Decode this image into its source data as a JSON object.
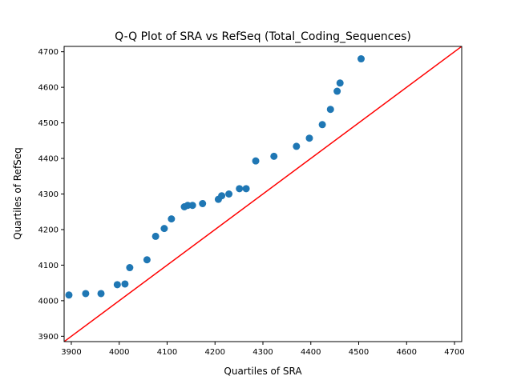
{
  "chart_data": {
    "type": "scatter",
    "title": "Q-Q Plot of SRA vs RefSeq (Total_Coding_Sequences)",
    "xlabel": "Quartiles of SRA",
    "ylabel": "Quartiles of RefSeq",
    "xlim": [
      3885,
      4715
    ],
    "ylim": [
      3885,
      4715
    ],
    "xticks": [
      3900,
      4000,
      4100,
      4200,
      4300,
      4400,
      4500,
      4600,
      4700
    ],
    "yticks": [
      3900,
      4000,
      4100,
      4200,
      4300,
      4400,
      4500,
      4600,
      4700
    ],
    "grid": false,
    "series": [
      {
        "color": "#1f77b4",
        "points": [
          [
            3895,
            4016
          ],
          [
            3930,
            4020
          ],
          [
            3962,
            4020
          ],
          [
            3996,
            4045
          ],
          [
            4012,
            4047
          ],
          [
            4022,
            4093
          ],
          [
            4058,
            4115
          ],
          [
            4076,
            4181
          ],
          [
            4094,
            4203
          ],
          [
            4109,
            4230
          ],
          [
            4136,
            4264
          ],
          [
            4143,
            4268
          ],
          [
            4153,
            4268
          ],
          [
            4174,
            4273
          ],
          [
            4207,
            4285
          ],
          [
            4214,
            4295
          ],
          [
            4229,
            4300
          ],
          [
            4251,
            4315
          ],
          [
            4265,
            4315
          ],
          [
            4285,
            4393
          ],
          [
            4323,
            4406
          ],
          [
            4370,
            4434
          ],
          [
            4397,
            4457
          ],
          [
            4424,
            4495
          ],
          [
            4441,
            4538
          ],
          [
            4455,
            4589
          ],
          [
            4461,
            4612
          ],
          [
            4505,
            4680
          ]
        ]
      }
    ],
    "reference_line": {
      "color": "#ff0000",
      "from": [
        3885,
        3885
      ],
      "to": [
        4715,
        4715
      ]
    }
  }
}
